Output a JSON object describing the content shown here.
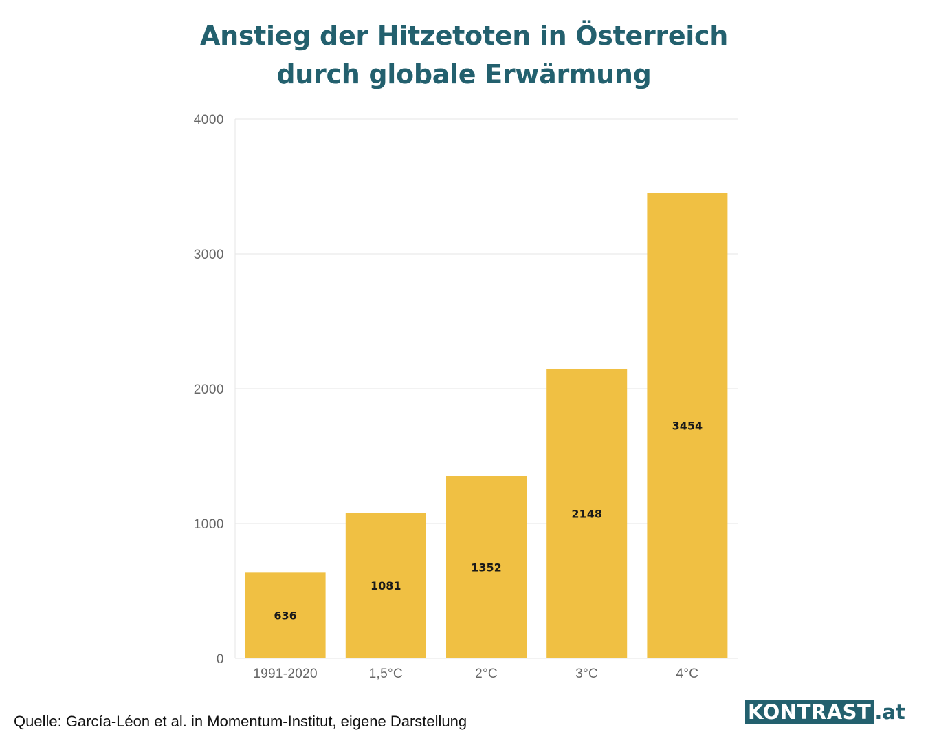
{
  "header": {
    "title_line1": "Anstieg der Hitzetoten in Österreich",
    "title_line2": "durch globale Erwärmung"
  },
  "chart_data": {
    "type": "bar",
    "categories": [
      "1991-2020",
      "1,5°C",
      "2°C",
      "3°C",
      "4°C"
    ],
    "values": [
      636,
      1081,
      1352,
      2148,
      3454
    ],
    "data_labels": [
      "636",
      "1081",
      "1352",
      "2148",
      "3454"
    ],
    "yticks": [
      "0",
      "1000",
      "2000",
      "3000",
      "4000"
    ],
    "ylim": [
      0,
      4000
    ],
    "grid": true,
    "legend": "none",
    "bar_color": "#f0c043",
    "grid_color": "#e9e9e9",
    "axis_text_color": "#666666",
    "label_color": "#1a1a1a"
  },
  "footer": {
    "source": "Quelle: García-Léon et al. in Momentum-Institut, eigene Darstellung",
    "logo_main": "KONTRAST",
    "logo_tld": ".at"
  }
}
